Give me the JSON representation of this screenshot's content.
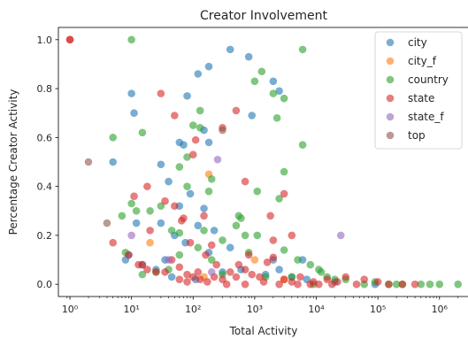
{
  "chart_data": {
    "type": "scatter",
    "title": "Creator Involvement",
    "xlabel": "Total Activity",
    "ylabel": "Percentage Creator Activity",
    "xscale": "log",
    "xlim": [
      0.65,
      3000000
    ],
    "ylim": [
      -0.05,
      1.05
    ],
    "xticks": [
      {
        "value": 1,
        "label": "10⁰"
      },
      {
        "value": 10,
        "label": "10¹"
      },
      {
        "value": 100,
        "label": "10²"
      },
      {
        "value": 1000,
        "label": "10³"
      },
      {
        "value": 10000,
        "label": "10⁴"
      },
      {
        "value": 100000,
        "label": "10⁵"
      },
      {
        "value": 1000000,
        "label": "10⁶"
      }
    ],
    "yticks": [
      {
        "value": 0.0,
        "label": "0.0"
      },
      {
        "value": 0.2,
        "label": "0.2"
      },
      {
        "value": 0.4,
        "label": "0.4"
      },
      {
        "value": 0.6,
        "label": "0.6"
      },
      {
        "value": 0.8,
        "label": "0.8"
      },
      {
        "value": 1.0,
        "label": "1.0"
      }
    ],
    "grid": false,
    "legend_position": "top-right",
    "point_alpha": 0.6,
    "series": [
      {
        "name": "city",
        "color": "#1f77b4",
        "points": [
          [
            10,
            0.78
          ],
          [
            11,
            0.7
          ],
          [
            5,
            0.5
          ],
          [
            30,
            0.49
          ],
          [
            60,
            0.58
          ],
          [
            80,
            0.77
          ],
          [
            120,
            0.86
          ],
          [
            180,
            0.89
          ],
          [
            400,
            0.96
          ],
          [
            800,
            0.93
          ],
          [
            2000,
            0.83
          ],
          [
            2500,
            0.79
          ],
          [
            900,
            0.69
          ],
          [
            150,
            0.63
          ],
          [
            70,
            0.57
          ],
          [
            40,
            0.42
          ],
          [
            90,
            0.37
          ],
          [
            60,
            0.32
          ],
          [
            150,
            0.31
          ],
          [
            120,
            0.24
          ],
          [
            30,
            0.25
          ],
          [
            12,
            0.25
          ],
          [
            50,
            0.2
          ],
          [
            400,
            0.15
          ],
          [
            2000,
            0.1
          ],
          [
            6000,
            0.1
          ],
          [
            8,
            0.1
          ],
          [
            15,
            0.08
          ],
          [
            25,
            0.06
          ],
          [
            300,
            0.05
          ],
          [
            1500,
            0.04
          ],
          [
            4000,
            0.03
          ],
          [
            7000,
            0.02
          ],
          [
            20000,
            0.01
          ],
          [
            90000,
            0.0
          ],
          [
            45,
            0.03
          ],
          [
            110,
            0.02
          ],
          [
            180,
            0.13
          ],
          [
            600,
            0.06
          ],
          [
            2500,
            0.06
          ],
          [
            35,
            0.1
          ],
          [
            9,
            0.12
          ],
          [
            75,
            0.17
          ],
          [
            220,
            0.22
          ],
          [
            180,
            0.58
          ]
        ]
      },
      {
        "name": "city_f",
        "color": "#ff7f0e",
        "points": [
          [
            180,
            0.45
          ],
          [
            20,
            0.17
          ],
          [
            1000,
            0.1
          ],
          [
            150,
            0.03
          ],
          [
            3000,
            0.02
          ]
        ]
      },
      {
        "name": "country",
        "color": "#2ca02c",
        "points": [
          [
            10,
            1.0
          ],
          [
            5,
            0.6
          ],
          [
            15,
            0.62
          ],
          [
            100,
            0.65
          ],
          [
            130,
            0.71
          ],
          [
            1000,
            0.83
          ],
          [
            1300,
            0.87
          ],
          [
            2000,
            0.78
          ],
          [
            3000,
            0.76
          ],
          [
            2300,
            0.68
          ],
          [
            6000,
            0.96
          ],
          [
            6000,
            0.57
          ],
          [
            3000,
            0.46
          ],
          [
            1100,
            0.38
          ],
          [
            550,
            0.28
          ],
          [
            200,
            0.43
          ],
          [
            180,
            0.38
          ],
          [
            80,
            0.4
          ],
          [
            60,
            0.48
          ],
          [
            80,
            0.52
          ],
          [
            130,
            0.64
          ],
          [
            150,
            0.22
          ],
          [
            60,
            0.21
          ],
          [
            30,
            0.32
          ],
          [
            10,
            0.33
          ],
          [
            7,
            0.28
          ],
          [
            12,
            0.3
          ],
          [
            20,
            0.3
          ],
          [
            1100,
            0.2
          ],
          [
            800,
            0.13
          ],
          [
            600,
            0.27
          ],
          [
            300,
            0.18
          ],
          [
            5000,
            0.1
          ],
          [
            8000,
            0.08
          ],
          [
            12000,
            0.05
          ],
          [
            15000,
            0.03
          ],
          [
            30000,
            0.02
          ],
          [
            90000,
            0.01
          ],
          [
            200000,
            0.0
          ],
          [
            500000,
            0.0
          ],
          [
            1000000,
            0.0
          ],
          [
            2000000,
            0.0
          ],
          [
            11000,
            0.06
          ],
          [
            700,
            0.2
          ],
          [
            200,
            0.1
          ],
          [
            60,
            0.12
          ],
          [
            40,
            0.06
          ],
          [
            25,
            0.05
          ],
          [
            15,
            0.04
          ],
          [
            300,
            0.04
          ],
          [
            1500,
            0.03
          ],
          [
            4000,
            0.03
          ],
          [
            20000,
            0.02
          ],
          [
            60000,
            0.0
          ],
          [
            8,
            0.13
          ],
          [
            120,
            0.15
          ],
          [
            3000,
            0.14
          ],
          [
            9000,
            0.0
          ],
          [
            250000,
            0.0
          ],
          [
            150000,
            0.0
          ],
          [
            700000,
            0.0
          ],
          [
            45,
            0.22
          ],
          [
            2500,
            0.35
          ],
          [
            500,
            0.24
          ]
        ]
      },
      {
        "name": "state",
        "color": "#d62728",
        "points": [
          [
            1,
            1.0
          ],
          [
            1,
            1.0
          ],
          [
            30,
            0.78
          ],
          [
            50,
            0.69
          ],
          [
            500,
            0.71
          ],
          [
            300,
            0.64
          ],
          [
            110,
            0.59
          ],
          [
            100,
            0.53
          ],
          [
            11,
            0.36
          ],
          [
            18,
            0.4
          ],
          [
            50,
            0.32
          ],
          [
            70,
            0.27
          ],
          [
            150,
            0.28
          ],
          [
            700,
            0.42
          ],
          [
            1800,
            0.28
          ],
          [
            3000,
            0.37
          ],
          [
            4000,
            0.2
          ],
          [
            2000,
            0.18
          ],
          [
            800,
            0.12
          ],
          [
            200,
            0.16
          ],
          [
            5,
            0.17
          ],
          [
            9,
            0.12
          ],
          [
            13,
            0.08
          ],
          [
            18,
            0.06
          ],
          [
            25,
            0.05
          ],
          [
            35,
            0.05
          ],
          [
            45,
            0.1
          ],
          [
            60,
            0.07
          ],
          [
            80,
            0.04
          ],
          [
            100,
            0.03
          ],
          [
            130,
            0.02
          ],
          [
            170,
            0.01
          ],
          [
            220,
            0.03
          ],
          [
            300,
            0.02
          ],
          [
            400,
            0.05
          ],
          [
            550,
            0.08
          ],
          [
            700,
            0.06
          ],
          [
            900,
            0.04
          ],
          [
            1200,
            0.03
          ],
          [
            1600,
            0.09
          ],
          [
            2000,
            0.11
          ],
          [
            3000,
            0.02
          ],
          [
            4000,
            0.01
          ],
          [
            5500,
            0.03
          ],
          [
            8000,
            0.0
          ],
          [
            11000,
            0.0
          ],
          [
            15000,
            0.02
          ],
          [
            22000,
            0.01
          ],
          [
            30000,
            0.03
          ],
          [
            45000,
            0.0
          ],
          [
            60000,
            0.02
          ],
          [
            100000,
            0.01
          ],
          [
            150000,
            0.0
          ],
          [
            250000,
            0.0
          ],
          [
            400000,
            0.0
          ],
          [
            20,
            0.22
          ],
          [
            35,
            0.34
          ],
          [
            65,
            0.26
          ],
          [
            90,
            0.17
          ],
          [
            160,
            0.12
          ],
          [
            240,
            0.08
          ],
          [
            120,
            0.05
          ],
          [
            500,
            0.03
          ],
          [
            1400,
            0.01
          ],
          [
            9000,
            0.01
          ],
          [
            15,
            0.08
          ],
          [
            60,
            0.02
          ],
          [
            80,
            0.01
          ],
          [
            350,
            0.0
          ],
          [
            700,
            0.0
          ],
          [
            2500,
            0.0
          ],
          [
            5000,
            0.0
          ],
          [
            18000,
            0.0
          ]
        ]
      },
      {
        "name": "state_f",
        "color": "#9467bd",
        "points": [
          [
            10,
            0.2
          ],
          [
            250,
            0.51
          ],
          [
            25000,
            0.2
          ],
          [
            40,
            0.1
          ],
          [
            200,
            0.05
          ]
        ]
      },
      {
        "name": "top",
        "color": "#8c564b",
        "points": [
          [
            2,
            0.5
          ],
          [
            4,
            0.25
          ],
          [
            300,
            0.63
          ]
        ]
      }
    ]
  }
}
